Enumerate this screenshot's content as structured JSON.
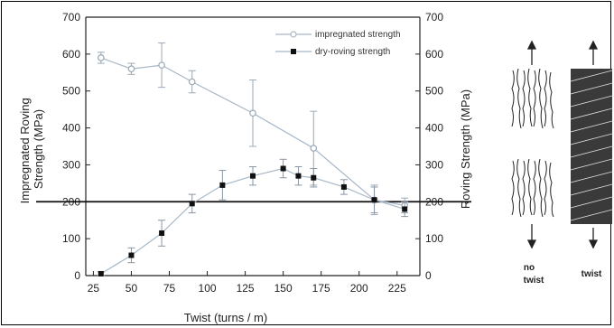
{
  "chart_data": {
    "type": "line",
    "x": [
      30,
      50,
      70,
      90,
      110,
      130,
      150,
      160,
      170,
      190,
      210,
      230
    ],
    "xlabel": "Twist (turns / m)",
    "ylabel_left": "Impregnated Roving Strength (MPa)",
    "ylabel_right": "Roving Strength (MPa)",
    "xlim": [
      20,
      240
    ],
    "ylim": [
      0,
      700
    ],
    "x_ticks": [
      25,
      50,
      75,
      100,
      125,
      150,
      175,
      200,
      225
    ],
    "y_ticks": [
      0,
      100,
      200,
      300,
      400,
      500,
      600,
      700
    ],
    "grid": false,
    "legend_position": "top-right",
    "reference_line_y": 200,
    "series": [
      {
        "name": "impregnated strength",
        "marker": "open-circle",
        "color": "#a8b8c8",
        "points": [
          {
            "x": 30,
            "y": 590,
            "err": 15
          },
          {
            "x": 50,
            "y": 560,
            "err": 15
          },
          {
            "x": 70,
            "y": 570,
            "err": 60
          },
          {
            "x": 90,
            "y": 525,
            "err": 30
          },
          {
            "x": 130,
            "y": 440,
            "err": 90
          },
          {
            "x": 170,
            "y": 345,
            "err": 100
          },
          {
            "x": 210,
            "y": 205,
            "err": 40
          },
          {
            "x": 230,
            "y": 190,
            "err": 20
          }
        ]
      },
      {
        "name": "dry-roving strength",
        "marker": "filled-square",
        "color": "#111111",
        "points": [
          {
            "x": 30,
            "y": 5,
            "err": 5
          },
          {
            "x": 50,
            "y": 55,
            "err": 20
          },
          {
            "x": 70,
            "y": 115,
            "err": 35
          },
          {
            "x": 90,
            "y": 195,
            "err": 25
          },
          {
            "x": 110,
            "y": 245,
            "err": 40
          },
          {
            "x": 130,
            "y": 270,
            "err": 25
          },
          {
            "x": 150,
            "y": 290,
            "err": 25
          },
          {
            "x": 160,
            "y": 270,
            "err": 25
          },
          {
            "x": 170,
            "y": 265,
            "err": 25
          },
          {
            "x": 190,
            "y": 240,
            "err": 20
          },
          {
            "x": 210,
            "y": 205,
            "err": 35
          },
          {
            "x": 230,
            "y": 180,
            "err": 20
          }
        ]
      }
    ]
  },
  "schematic": {
    "no_twist_label_line1": "no",
    "no_twist_label_line2": "twist",
    "twist_label": "twist"
  }
}
